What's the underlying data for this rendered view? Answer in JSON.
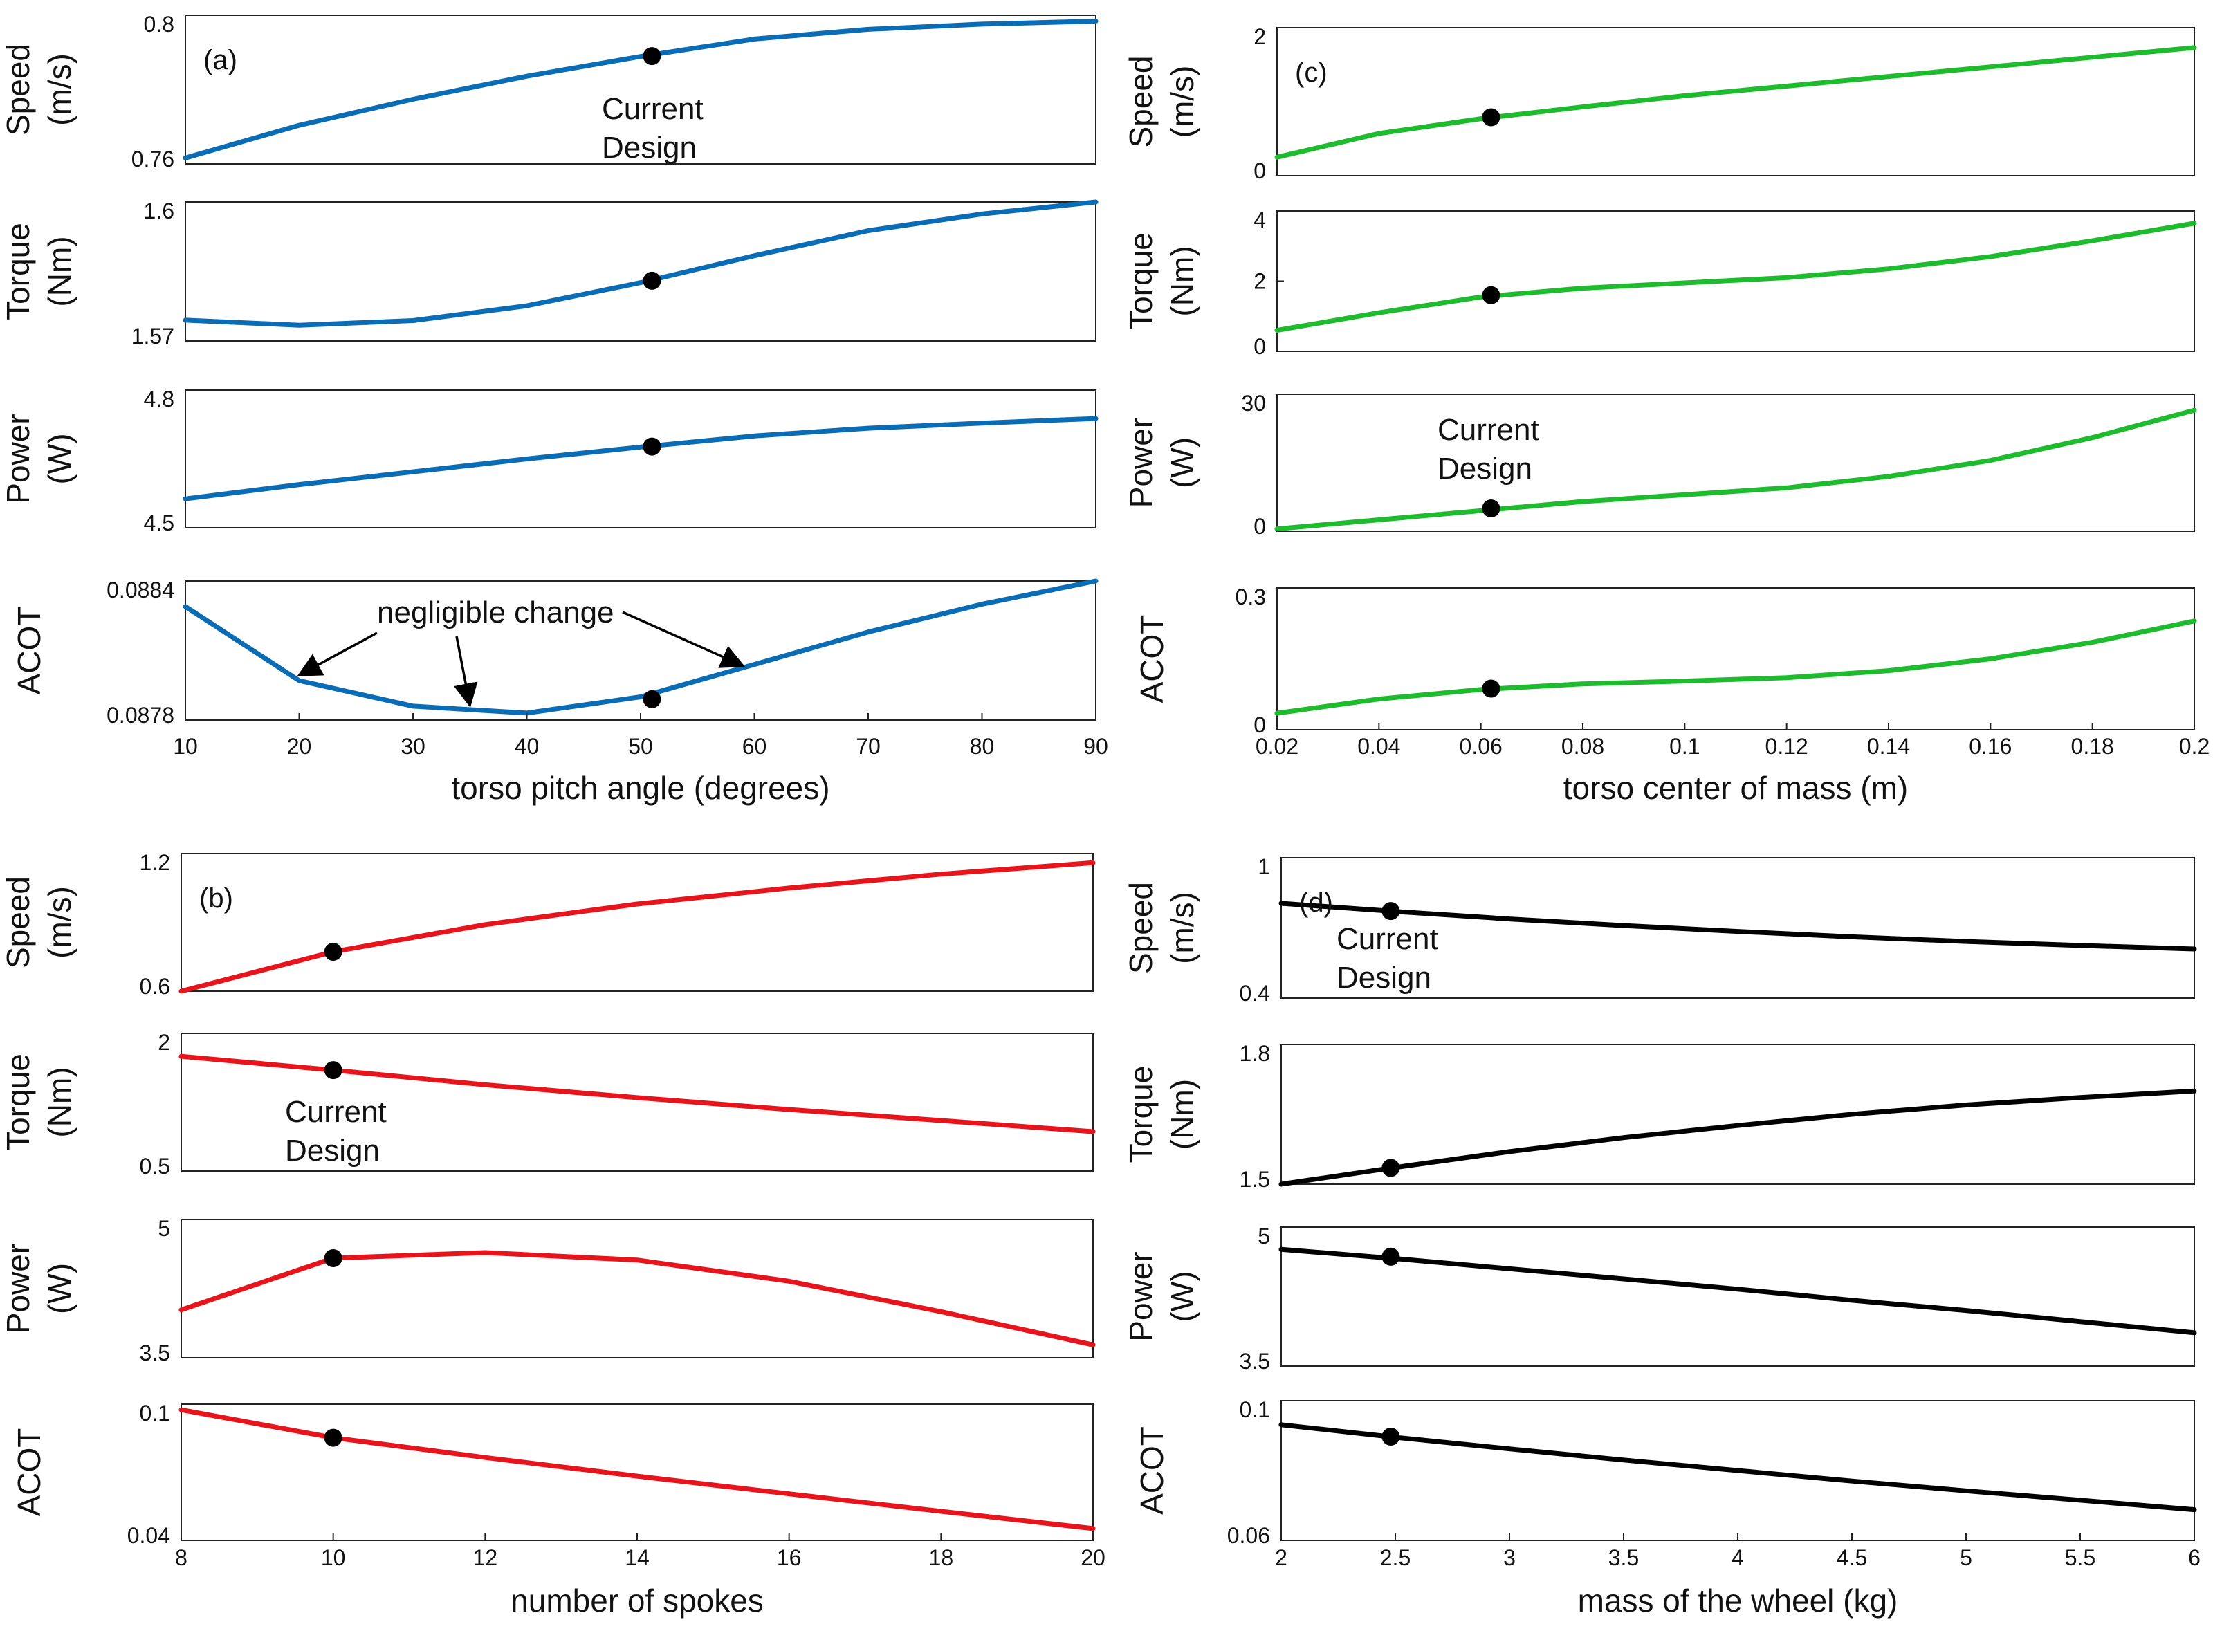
{
  "chart_data": [
    {
      "panel": "(a)",
      "type": "line",
      "color": "#0a6cb5",
      "xlabel": "torso pitch angle (degrees)",
      "x": [
        10,
        20,
        30,
        40,
        50,
        60,
        70,
        80,
        90
      ],
      "xlim": [
        10,
        90
      ],
      "xticks": [
        "10",
        "20",
        "30",
        "40",
        "50",
        "60",
        "70",
        "80",
        "90"
      ],
      "current": {
        "x": 51,
        "label": [
          "Current",
          "Design"
        ]
      },
      "annotation": "negligible change",
      "subplots": [
        {
          "name": "speed",
          "ylabel": [
            "Speed",
            "(m/s)"
          ],
          "ylim": [
            0.76,
            0.8
          ],
          "yticks": [
            "0.8",
            "0.76"
          ],
          "values": [
            0.7616,
            0.7704,
            0.7774,
            0.7836,
            0.7889,
            0.7936,
            0.7962,
            0.7976,
            0.7984
          ],
          "marker_y": 0.789
        },
        {
          "name": "torque",
          "ylabel": [
            "Torque",
            "(Nm)"
          ],
          "ylim": [
            1.57,
            1.6
          ],
          "yticks": [
            "1.6",
            "1.57"
          ],
          "values": [
            1.5745,
            1.5734,
            1.5744,
            1.5776,
            1.5826,
            1.5884,
            1.5938,
            1.5974,
            1.6
          ],
          "marker_y": 1.583
        },
        {
          "name": "power",
          "ylabel": [
            "Power",
            "(W)"
          ],
          "ylim": [
            4.5,
            4.8
          ],
          "yticks": [
            "4.8",
            "4.5"
          ],
          "values": [
            4.563,
            4.594,
            4.622,
            4.65,
            4.676,
            4.7,
            4.717,
            4.728,
            4.738
          ],
          "marker_y": 4.677
        },
        {
          "name": "acot",
          "ylabel": [
            "ACOT"
          ],
          "ylim": [
            0.0878,
            0.0884
          ],
          "yticks": [
            "0.0884",
            "0.0878"
          ],
          "values": [
            0.08829,
            0.08797,
            0.08786,
            0.08783,
            0.0879,
            0.08804,
            0.08818,
            0.0883,
            0.0884
          ],
          "marker_y": 0.08789
        }
      ]
    },
    {
      "panel": "(b)",
      "type": "line",
      "color": "#e8141c",
      "xlabel": "number of spokes",
      "x": [
        8,
        10,
        12,
        14,
        16,
        18,
        20
      ],
      "xlim": [
        8,
        20
      ],
      "xticks": [
        "8",
        "10",
        "12",
        "14",
        "16",
        "18",
        "20"
      ],
      "current": {
        "x": 10,
        "label": [
          "Current",
          "Design"
        ]
      },
      "subplots": [
        {
          "name": "speed",
          "ylabel": [
            "Speed",
            "(m/s)"
          ],
          "ylim": [
            0.6,
            1.2
          ],
          "yticks": [
            "1.2",
            "0.6"
          ],
          "values": [
            0.6,
            0.772,
            0.89,
            0.98,
            1.05,
            1.11,
            1.16
          ],
          "marker_y": 0.772
        },
        {
          "name": "torque",
          "ylabel": [
            "Torque",
            "(Nm)"
          ],
          "ylim": [
            0.5,
            2
          ],
          "yticks": [
            "2",
            "0.5"
          ],
          "values": [
            1.75,
            1.6,
            1.44,
            1.3,
            1.17,
            1.05,
            0.93
          ],
          "marker_y": 1.6
        },
        {
          "name": "power",
          "ylabel": [
            "Power",
            "(W)"
          ],
          "ylim": [
            3.5,
            5
          ],
          "yticks": [
            "5",
            "3.5"
          ],
          "values": [
            4.02,
            4.58,
            4.64,
            4.56,
            4.33,
            4.0,
            3.64
          ],
          "marker_y": 4.58
        },
        {
          "name": "acot",
          "ylabel": [
            "ACOT"
          ],
          "ylim": [
            0.04,
            0.1
          ],
          "yticks": [
            "0.1",
            "0.04"
          ],
          "values": [
            0.0975,
            0.0852,
            0.0765,
            0.0683,
            0.0605,
            0.0528,
            0.0452
          ],
          "marker_y": 0.0852
        }
      ]
    },
    {
      "panel": "(c)",
      "type": "line",
      "color": "#1fbb2e",
      "xlabel": "torso center of mass (m)",
      "x": [
        0.02,
        0.04,
        0.06,
        0.08,
        0.1,
        0.12,
        0.14,
        0.16,
        0.18,
        0.2
      ],
      "xlim": [
        0.02,
        0.2
      ],
      "xticks": [
        "0.02",
        "0.04",
        "0.06",
        "0.08",
        "0.1",
        "0.12",
        "0.14",
        "0.16",
        "0.18",
        "0.2"
      ],
      "current": {
        "x": 0.062,
        "label": [
          "Current",
          "Design"
        ]
      },
      "subplots": [
        {
          "name": "speed",
          "ylabel": [
            "Speed",
            "(m/s)"
          ],
          "ylim": [
            0,
            2
          ],
          "yticks": [
            "2",
            "0"
          ],
          "values": [
            0.25,
            0.57,
            0.77,
            0.93,
            1.08,
            1.21,
            1.34,
            1.47,
            1.6,
            1.73
          ],
          "marker_y": 0.79
        },
        {
          "name": "torque",
          "ylabel": [
            "Torque",
            "(Nm)"
          ],
          "ylim": [
            0,
            4
          ],
          "yticks": [
            "4",
            "2",
            "0"
          ],
          "values": [
            0.6,
            1.1,
            1.55,
            1.8,
            1.95,
            2.1,
            2.35,
            2.7,
            3.15,
            3.65
          ],
          "marker_y": 1.6
        },
        {
          "name": "power",
          "ylabel": [
            "Power",
            "(W)"
          ],
          "ylim": [
            0,
            30
          ],
          "yticks": [
            "30",
            "0"
          ],
          "values": [
            0.5,
            2.5,
            4.5,
            6.5,
            8,
            9.5,
            12,
            15.5,
            20.5,
            26.5
          ],
          "marker_y": 5
        },
        {
          "name": "acot",
          "ylabel": [
            "ACOT"
          ],
          "ylim": [
            0,
            0.3
          ],
          "yticks": [
            "0.3",
            "0"
          ],
          "values": [
            0.035,
            0.065,
            0.085,
            0.097,
            0.103,
            0.11,
            0.125,
            0.15,
            0.185,
            0.23
          ],
          "marker_y": 0.087
        }
      ]
    },
    {
      "panel": "(d)",
      "type": "line",
      "color": "#000000",
      "xlabel": "mass of the wheel (kg)",
      "x": [
        2,
        2.5,
        3,
        3.5,
        4,
        4.5,
        5,
        5.5,
        6
      ],
      "xlim": [
        2,
        6
      ],
      "xticks": [
        "2",
        "2.5",
        "3",
        "3.5",
        "4",
        "4.5",
        "5",
        "5.5",
        "6"
      ],
      "current": {
        "x": 2.48,
        "label": [
          "Current",
          "Design"
        ]
      },
      "subplots": [
        {
          "name": "speed",
          "ylabel": [
            "Speed",
            "(m/s)"
          ],
          "ylim": [
            0.4,
            1
          ],
          "yticks": [
            "1",
            "0.4"
          ],
          "values": [
            0.805,
            0.77,
            0.738,
            0.71,
            0.685,
            0.662,
            0.642,
            0.625,
            0.61
          ],
          "marker_y": 0.772
        },
        {
          "name": "torque",
          "ylabel": [
            "Torque",
            "(Nm)"
          ],
          "ylim": [
            1.5,
            1.8
          ],
          "yticks": [
            "1.8",
            "1.5"
          ],
          "values": [
            1.5,
            1.536,
            1.57,
            1.6,
            1.626,
            1.65,
            1.67,
            1.686,
            1.7
          ],
          "marker_y": 1.535
        },
        {
          "name": "power",
          "ylabel": [
            "Power",
            "(W)"
          ],
          "ylim": [
            3.5,
            5
          ],
          "yticks": [
            "5",
            "3.5"
          ],
          "values": [
            4.76,
            4.66,
            4.55,
            4.44,
            4.33,
            4.21,
            4.1,
            3.98,
            3.86
          ],
          "marker_y": 4.68
        },
        {
          "name": "acot",
          "ylabel": [
            "ACOT"
          ],
          "ylim": [
            0.06,
            0.1
          ],
          "yticks": [
            "0.1",
            "0.06"
          ],
          "values": [
            0.0931,
            0.0895,
            0.0862,
            0.083,
            0.08,
            0.077,
            0.0742,
            0.0715,
            0.0688
          ],
          "marker_y": 0.0897
        }
      ]
    }
  ]
}
